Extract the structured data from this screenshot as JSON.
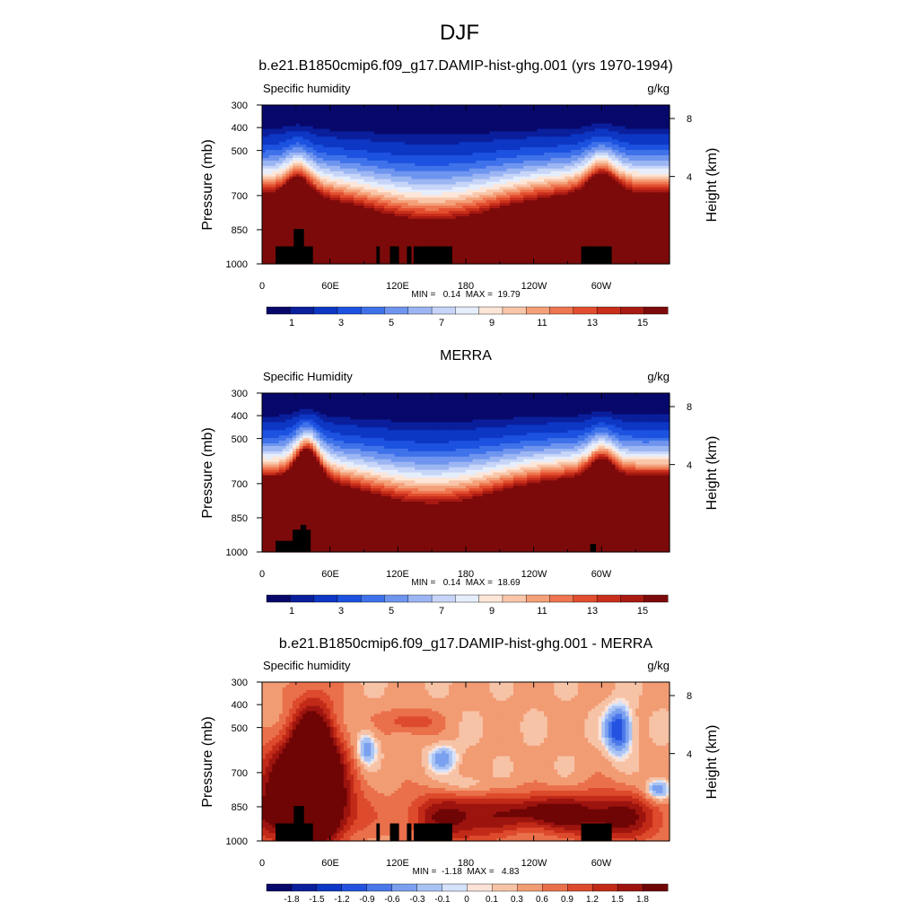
{
  "figure": {
    "title": "DJF",
    "colors": {
      "sequential": [
        "#08086b",
        "#0a1f9c",
        "#0d37c4",
        "#1d52e0",
        "#3f72ea",
        "#6f95ef",
        "#9cb6f3",
        "#c6d5f8",
        "#e6eefc",
        "#fde6d8",
        "#f9c6aa",
        "#f4a079",
        "#ee7650",
        "#e24e2f",
        "#c92f1b",
        "#a81a12",
        "#7d0a0a"
      ],
      "diverging": [
        "#08086b",
        "#0a1f9c",
        "#0d37c4",
        "#2452e0",
        "#4a78ea",
        "#7aa0ef",
        "#a9c3f4",
        "#d4e2fa",
        "#fbe2d6",
        "#f7c3a6",
        "#f29c74",
        "#ea704b",
        "#dd4a2c",
        "#c22a18",
        "#9d140f",
        "#6f0505"
      ]
    }
  },
  "chart_data": [
    {
      "type": "heatmap",
      "title": "b.e21.B1850cmip6.f09_g17.DAMIP-hist-ghg.001 (yrs 1970-1994)",
      "left_label": "Specific humidity",
      "units": "g/kg",
      "ylabel": "Pressure (mb)",
      "ylabel_right": "Height (km)",
      "xticks": [
        "0",
        "60E",
        "120E",
        "180",
        "120W",
        "60W"
      ],
      "yticks": [
        "300",
        "400",
        "500",
        "700",
        "850",
        "1000"
      ],
      "yticks_right": [
        "8",
        "4"
      ],
      "stats": "MIN =   0.14  MAX =  19.79",
      "min": 0.14,
      "max": 19.79,
      "levels": [
        0.5,
        1,
        2,
        3,
        4,
        5,
        6,
        7,
        8,
        9,
        10,
        11,
        12,
        13,
        14,
        15
      ],
      "colorbar_labels": [
        "1",
        "3",
        "5",
        "7",
        "9",
        "11",
        "13",
        "15"
      ],
      "palette": "sequential"
    },
    {
      "type": "heatmap",
      "title": "MERRA",
      "left_label": "Specific Humidity",
      "units": "g/kg",
      "ylabel": "Pressure (mb)",
      "ylabel_right": "Height (km)",
      "xticks": [
        "0",
        "60E",
        "120E",
        "180",
        "120W",
        "60W"
      ],
      "yticks": [
        "300",
        "400",
        "500",
        "700",
        "850",
        "1000"
      ],
      "yticks_right": [
        "8",
        "4"
      ],
      "stats": "MIN =   0.14  MAX =  18.69",
      "min": 0.14,
      "max": 18.69,
      "levels": [
        0.5,
        1,
        2,
        3,
        4,
        5,
        6,
        7,
        8,
        9,
        10,
        11,
        12,
        13,
        14,
        15
      ],
      "colorbar_labels": [
        "1",
        "3",
        "5",
        "7",
        "9",
        "11",
        "13",
        "15"
      ],
      "palette": "sequential"
    },
    {
      "type": "heatmap",
      "title": "b.e21.B1850cmip6.f09_g17.DAMIP-hist-ghg.001 - MERRA",
      "left_label": "Specific humidity",
      "units": "g/kg",
      "ylabel": "Pressure (mb)",
      "ylabel_right": "Height (km)",
      "xticks": [
        "0",
        "60E",
        "120E",
        "180",
        "120W",
        "60W"
      ],
      "yticks": [
        "300",
        "400",
        "500",
        "700",
        "850",
        "1000"
      ],
      "yticks_right": [
        "8",
        "4"
      ],
      "stats": "MIN =  -1.18  MAX =   4.83",
      "min": -1.18,
      "max": 4.83,
      "levels": [
        -1.8,
        -1.5,
        -1.2,
        -0.9,
        -0.6,
        -0.3,
        -0.1,
        0,
        0.1,
        0.3,
        0.6,
        0.9,
        1.2,
        1.5,
        1.8
      ],
      "colorbar_labels": [
        "-1.8",
        "-1.5",
        "-1.2",
        "-0.9",
        "-0.6",
        "-0.3",
        "-0.1",
        "0",
        "0.1",
        "0.3",
        "0.6",
        "0.9",
        "1.2",
        "1.5",
        "1.8"
      ],
      "palette": "diverging"
    }
  ]
}
